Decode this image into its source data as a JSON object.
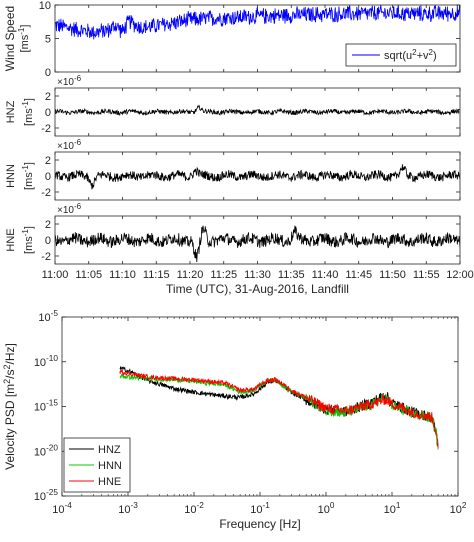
{
  "figure": {
    "chart_data": [
      {
        "type": "line",
        "panel": "wind",
        "title": "",
        "ylabel": "Wind Speed",
        "yunit": "[ms-1]",
        "ylim": [
          0,
          10
        ],
        "yticks": [
          "0",
          "5",
          "10"
        ],
        "x_range": [
          "11:00",
          "12:00"
        ],
        "x_tick_labels_visible": false,
        "legend": {
          "entries": [
            "sqrt(u2+v2)"
          ],
          "placement": "bottom-right"
        },
        "series": [
          {
            "name": "sqrt(u2+v2)",
            "color": "#0000ff",
            "x_minutes": [
              0,
              2,
              4,
              6,
              8,
              9,
              10,
              11,
              12,
              13,
              15,
              18,
              20,
              25,
              30,
              35,
              40,
              45,
              50,
              55,
              60
            ],
            "values": [
              7.0,
              6.6,
              6.2,
              5.9,
              6.3,
              7.0,
              6.0,
              7.6,
              7.0,
              6.6,
              6.9,
              7.4,
              7.8,
              8.1,
              8.3,
              8.5,
              8.6,
              8.7,
              8.8,
              8.7,
              8.8
            ],
            "noise_amplitude": 1.4
          }
        ]
      },
      {
        "type": "line",
        "panel": "HNZ",
        "ylabel": "HNZ",
        "yunit": "[ms-1]",
        "exponent": "×10-6",
        "ylim": [
          -3,
          3
        ],
        "yticks": [
          "-2",
          "0",
          "2"
        ],
        "x_range": [
          "11:00",
          "12:00"
        ],
        "x_tick_labels_visible": false,
        "series": [
          {
            "name": "HNZ",
            "color": "#000000",
            "baseline": 0.0,
            "noise_amplitude": 0.28,
            "events": [
              {
                "x_minutes": 21.3,
                "amplitude": 0.6
              }
            ]
          }
        ]
      },
      {
        "type": "line",
        "panel": "HNN",
        "ylabel": "HNN",
        "yunit": "[ms-1]",
        "exponent": "×10-6",
        "ylim": [
          -3,
          3
        ],
        "yticks": [
          "-2",
          "0",
          "2"
        ],
        "x_range": [
          "11:00",
          "12:00"
        ],
        "x_tick_labels_visible": false,
        "series": [
          {
            "name": "HNN",
            "color": "#000000",
            "baseline": 0.0,
            "noise_amplitude": 0.55,
            "events": [
              {
                "x_minutes": 5.5,
                "amplitude": -1.0
              },
              {
                "x_minutes": 20.8,
                "amplitude": 0.7
              },
              {
                "x_minutes": 51.5,
                "amplitude": 0.9
              }
            ]
          }
        ]
      },
      {
        "type": "line",
        "panel": "HNE",
        "ylabel": "HNE",
        "yunit": "[ms-1]",
        "exponent": "×10-6",
        "ylim": [
          -3,
          3
        ],
        "yticks": [
          "-2",
          "0",
          "2"
        ],
        "x_range": [
          "11:00",
          "12:00"
        ],
        "xlabel": "Time (UTC), 31-Aug-2016, Landfill",
        "xticks": [
          "11:00",
          "11:05",
          "11:10",
          "11:15",
          "11:20",
          "11:25",
          "11:30",
          "11:35",
          "11:40",
          "11:45",
          "11:50",
          "11:55",
          "12:00"
        ],
        "series": [
          {
            "name": "HNE",
            "color": "#000000",
            "baseline": 0.0,
            "noise_amplitude": 0.75,
            "events": [
              {
                "x_minutes": 21.0,
                "amplitude": -2.3
              },
              {
                "x_minutes": 22.0,
                "amplitude": 1.3
              },
              {
                "x_minutes": 35.5,
                "amplitude": 0.9
              }
            ]
          }
        ]
      },
      {
        "type": "line",
        "panel": "psd",
        "title": "",
        "xscale": "log",
        "yscale": "log",
        "xlabel": "Frequency [Hz]",
        "ylabel": "Velocity PSD [m2/s2/Hz]",
        "xlim": [
          0.0001,
          100
        ],
        "ylim": [
          1e-25,
          1e-05
        ],
        "xticks": [
          "10-4",
          "10-3",
          "10-2",
          "10-1",
          "100",
          "101",
          "102"
        ],
        "yticks": [
          "10-25",
          "10-20",
          "10-15",
          "10-10",
          "10-5"
        ],
        "legend": {
          "entries": [
            "HNZ",
            "HNN",
            "HNE"
          ],
          "placement": "bottom-left"
        },
        "series": [
          {
            "name": "HNZ",
            "color": "#000000",
            "x": [
              0.00075,
              0.001,
              0.0013,
              0.002,
              0.003,
              0.005,
              0.01,
              0.02,
              0.05,
              0.08,
              0.1,
              0.13,
              0.17,
              0.2,
              0.3,
              0.5,
              1,
              2,
              5,
              8,
              10,
              20,
              40,
              47,
              49,
              50
            ],
            "logy": [
              -10.7,
              -11.0,
              -11.4,
              -12.1,
              -12.5,
              -13.0,
              -13.4,
              -13.7,
              -14.0,
              -13.6,
              -13.0,
              -12.3,
              -12.1,
              -12.4,
              -13.4,
              -14.3,
              -15.3,
              -15.6,
              -14.5,
              -13.7,
              -14.6,
              -15.6,
              -16.2,
              -18.0,
              -19.2,
              -20.1
            ],
            "noise_amplitude": 0.25
          },
          {
            "name": "HNN",
            "color": "#00cc00",
            "x": [
              0.00075,
              0.001,
              0.002,
              0.005,
              0.01,
              0.03,
              0.05,
              0.08,
              0.1,
              0.13,
              0.17,
              0.2,
              0.3,
              0.5,
              1,
              2,
              5,
              8,
              10,
              20,
              40,
              47,
              49,
              50
            ],
            "logy": [
              -11.6,
              -11.7,
              -11.9,
              -12.0,
              -12.2,
              -12.6,
              -13.4,
              -13.2,
              -12.6,
              -12.1,
              -12.0,
              -12.4,
              -13.3,
              -14.1,
              -15.4,
              -15.7,
              -14.8,
              -14.0,
              -14.9,
              -15.8,
              -16.3,
              -18.0,
              -19.2,
              -20.1
            ],
            "noise_amplitude": 0.25
          },
          {
            "name": "HNE",
            "color": "#ff0000",
            "x": [
              0.00075,
              0.001,
              0.002,
              0.005,
              0.01,
              0.03,
              0.05,
              0.08,
              0.1,
              0.13,
              0.17,
              0.2,
              0.3,
              0.5,
              1,
              2,
              5,
              8,
              10,
              20,
              40,
              47,
              49,
              50
            ],
            "logy": [
              -11.1,
              -11.3,
              -11.7,
              -11.9,
              -12.0,
              -12.4,
              -13.2,
              -13.1,
              -12.6,
              -12.1,
              -12.0,
              -12.3,
              -13.2,
              -14.0,
              -15.2,
              -15.5,
              -14.7,
              -14.2,
              -14.7,
              -15.6,
              -16.2,
              -17.9,
              -19.1,
              -20.0
            ],
            "noise_amplitude": 0.25
          }
        ]
      }
    ]
  }
}
